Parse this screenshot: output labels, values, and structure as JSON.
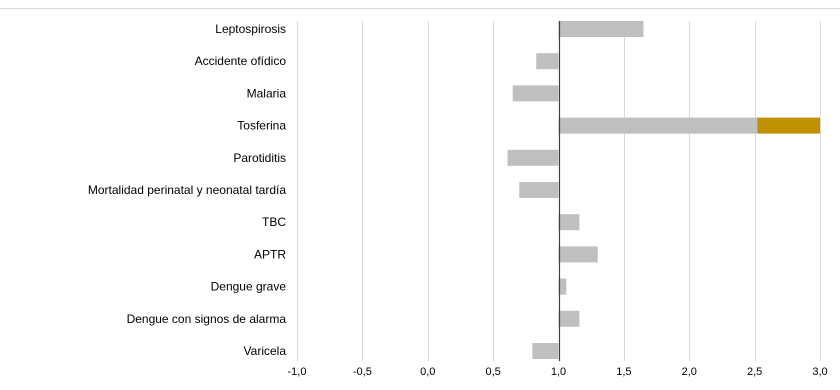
{
  "chart_data": {
    "type": "bar",
    "orientation": "horizontal",
    "baseline": 1.0,
    "categories": [
      "Leptospirosis",
      "Accidente ofídico",
      "Malaria",
      "Tosferina",
      "Parotiditis",
      "Mortalidad perinatal y neonatal tardía",
      "TBC",
      "APTR",
      "Dengue grave",
      "Dengue con signos de alarma",
      "Varicela"
    ],
    "values": [
      1.65,
      0.83,
      0.65,
      3.0,
      0.61,
      0.7,
      1.16,
      1.3,
      1.06,
      1.16,
      0.8
    ],
    "highlight": {
      "category": "Tosferina",
      "from": 2.52,
      "to": 3.0
    },
    "xlim": [
      -1.0,
      3.0
    ],
    "xticks": [
      -1.0,
      -0.5,
      0.0,
      0.5,
      1.0,
      1.5,
      2.0,
      2.5,
      3.0
    ],
    "xtick_labels": [
      "-1,0",
      "-0,5",
      "0,0",
      "0,5",
      "1,0",
      "1,5",
      "2,0",
      "2,5",
      "3,0"
    ],
    "grid": "vertical",
    "title": "",
    "xlabel": "",
    "ylabel": "",
    "colors": {
      "bar": "#bfbfbf",
      "highlight": "#bf9000",
      "grid": "#d9d9d9",
      "axis": "#404040"
    }
  }
}
